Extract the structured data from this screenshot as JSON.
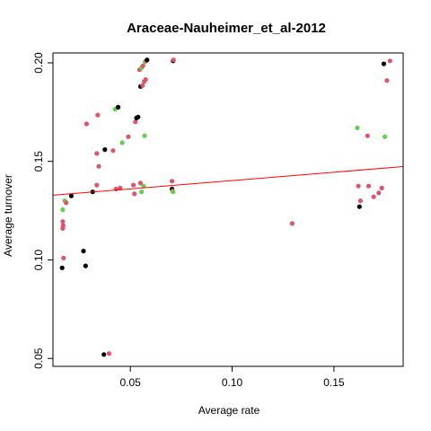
{
  "chart_data": {
    "type": "scatter",
    "title": "Araceae-Nauheimer_et_al-2012",
    "xlabel": "Average rate",
    "ylabel": "Average turnover",
    "xlim": [
      0.012,
      0.184
    ],
    "ylim": [
      0.046,
      0.205
    ],
    "x_ticks": [
      0.05,
      0.1,
      0.15
    ],
    "x_tick_labels": [
      "0.05",
      "0.10",
      "0.15"
    ],
    "y_ticks": [
      0.05,
      0.1,
      0.15,
      0.2
    ],
    "y_tick_labels": [
      "0.05",
      "0.10",
      "0.15",
      "0.20"
    ],
    "grid": false,
    "colors": {
      "black": "#000000",
      "red": "#DF536B",
      "green": "#61D04F",
      "trend": "#FF0000"
    },
    "trend_line": {
      "intercept": 0.1318,
      "slope": 0.0845
    },
    "points": [
      {
        "x": 0.0165,
        "y": 0.096,
        "c": "black"
      },
      {
        "x": 0.0172,
        "y": 0.101,
        "c": "red"
      },
      {
        "x": 0.0168,
        "y": 0.116,
        "c": "red"
      },
      {
        "x": 0.017,
        "y": 0.1175,
        "c": "red"
      },
      {
        "x": 0.0168,
        "y": 0.1195,
        "c": "red"
      },
      {
        "x": 0.0168,
        "y": 0.1255,
        "c": "green"
      },
      {
        "x": 0.0178,
        "y": 0.13,
        "c": "green"
      },
      {
        "x": 0.0185,
        "y": 0.129,
        "c": "red"
      },
      {
        "x": 0.021,
        "y": 0.1325,
        "c": "black"
      },
      {
        "x": 0.027,
        "y": 0.1045,
        "c": "black"
      },
      {
        "x": 0.028,
        "y": 0.097,
        "c": "black"
      },
      {
        "x": 0.0285,
        "y": 0.169,
        "c": "red"
      },
      {
        "x": 0.0315,
        "y": 0.1345,
        "c": "black"
      },
      {
        "x": 0.0335,
        "y": 0.138,
        "c": "red"
      },
      {
        "x": 0.0335,
        "y": 0.154,
        "c": "red"
      },
      {
        "x": 0.034,
        "y": 0.1735,
        "c": "red"
      },
      {
        "x": 0.0345,
        "y": 0.1475,
        "c": "red"
      },
      {
        "x": 0.037,
        "y": 0.052,
        "c": "black"
      },
      {
        "x": 0.0375,
        "y": 0.156,
        "c": "black"
      },
      {
        "x": 0.0395,
        "y": 0.0525,
        "c": "red"
      },
      {
        "x": 0.0415,
        "y": 0.1555,
        "c": "red"
      },
      {
        "x": 0.0425,
        "y": 0.1765,
        "c": "green"
      },
      {
        "x": 0.043,
        "y": 0.136,
        "c": "red"
      },
      {
        "x": 0.044,
        "y": 0.1775,
        "c": "black"
      },
      {
        "x": 0.045,
        "y": 0.1365,
        "c": "red"
      },
      {
        "x": 0.046,
        "y": 0.1595,
        "c": "green"
      },
      {
        "x": 0.049,
        "y": 0.1625,
        "c": "red"
      },
      {
        "x": 0.0515,
        "y": 0.138,
        "c": "red"
      },
      {
        "x": 0.052,
        "y": 0.1335,
        "c": "red"
      },
      {
        "x": 0.0525,
        "y": 0.17,
        "c": "red"
      },
      {
        "x": 0.053,
        "y": 0.172,
        "c": "black"
      },
      {
        "x": 0.0538,
        "y": 0.1725,
        "c": "black"
      },
      {
        "x": 0.0545,
        "y": 0.1965,
        "c": "red"
      },
      {
        "x": 0.055,
        "y": 0.139,
        "c": "red"
      },
      {
        "x": 0.055,
        "y": 0.188,
        "c": "black"
      },
      {
        "x": 0.0555,
        "y": 0.1345,
        "c": "green"
      },
      {
        "x": 0.0555,
        "y": 0.1975,
        "c": "green"
      },
      {
        "x": 0.056,
        "y": 0.1885,
        "c": "red"
      },
      {
        "x": 0.0562,
        "y": 0.1985,
        "c": "red"
      },
      {
        "x": 0.0565,
        "y": 0.1375,
        "c": "green"
      },
      {
        "x": 0.0568,
        "y": 0.1905,
        "c": "red"
      },
      {
        "x": 0.057,
        "y": 0.163,
        "c": "green"
      },
      {
        "x": 0.0572,
        "y": 0.2005,
        "c": "green"
      },
      {
        "x": 0.0575,
        "y": 0.1915,
        "c": "red"
      },
      {
        "x": 0.0578,
        "y": 0.201,
        "c": "red"
      },
      {
        "x": 0.0582,
        "y": 0.2015,
        "c": "black"
      },
      {
        "x": 0.0705,
        "y": 0.14,
        "c": "red"
      },
      {
        "x": 0.0705,
        "y": 0.136,
        "c": "black"
      },
      {
        "x": 0.0708,
        "y": 0.135,
        "c": "red"
      },
      {
        "x": 0.071,
        "y": 0.1345,
        "c": "green"
      },
      {
        "x": 0.071,
        "y": 0.201,
        "c": "black"
      },
      {
        "x": 0.0712,
        "y": 0.2015,
        "c": "red"
      },
      {
        "x": 0.1295,
        "y": 0.1185,
        "c": "red"
      },
      {
        "x": 0.1615,
        "y": 0.167,
        "c": "green"
      },
      {
        "x": 0.162,
        "y": 0.1375,
        "c": "red"
      },
      {
        "x": 0.1625,
        "y": 0.127,
        "c": "black"
      },
      {
        "x": 0.163,
        "y": 0.13,
        "c": "red"
      },
      {
        "x": 0.1665,
        "y": 0.163,
        "c": "red"
      },
      {
        "x": 0.167,
        "y": 0.1375,
        "c": "red"
      },
      {
        "x": 0.1695,
        "y": 0.132,
        "c": "red"
      },
      {
        "x": 0.172,
        "y": 0.134,
        "c": "red"
      },
      {
        "x": 0.1735,
        "y": 0.1365,
        "c": "red"
      },
      {
        "x": 0.1745,
        "y": 0.1995,
        "c": "black"
      },
      {
        "x": 0.175,
        "y": 0.1625,
        "c": "green"
      },
      {
        "x": 0.176,
        "y": 0.191,
        "c": "red"
      },
      {
        "x": 0.1775,
        "y": 0.201,
        "c": "red"
      }
    ]
  }
}
